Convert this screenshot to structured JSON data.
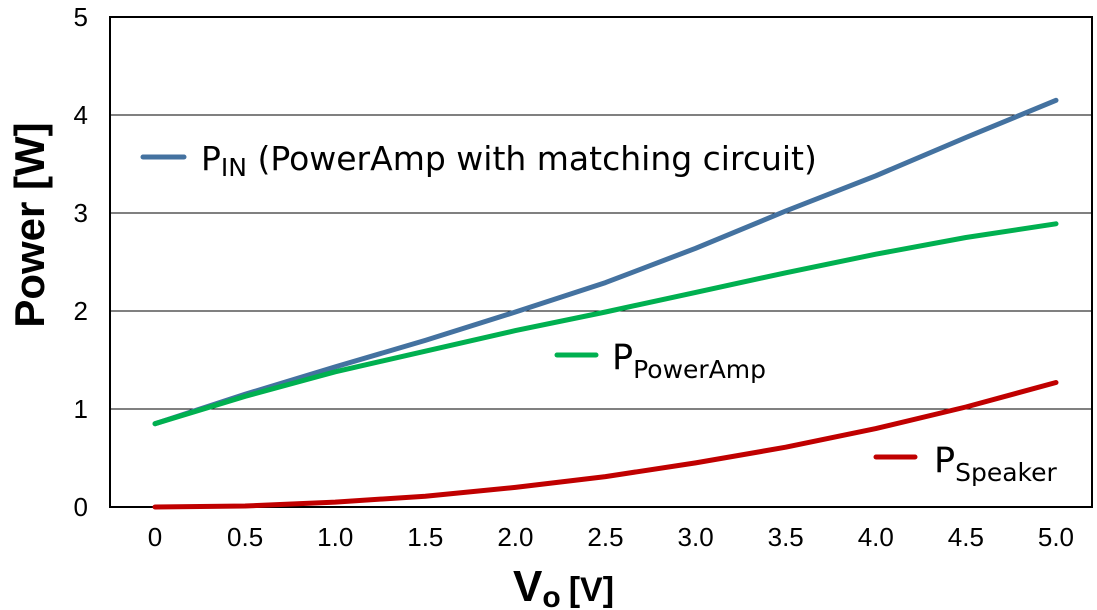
{
  "chart_data": {
    "type": "line",
    "xlabel": {
      "main": "V",
      "sub": "o",
      "unit": "[V]"
    },
    "ylabel": "Power [W]",
    "xlim": [
      -0.25,
      5.2
    ],
    "ylim": [
      0,
      5
    ],
    "x_tick_labels": [
      "0",
      "0.5",
      "1.0",
      "1.5",
      "2.0",
      "2.5",
      "3.0",
      "3.5",
      "4.0",
      "4.5",
      "5.0"
    ],
    "y_tick_labels": [
      "0",
      "1",
      "2",
      "3",
      "4",
      "5"
    ],
    "grid": "horizontal",
    "x": [
      0,
      0.5,
      1.0,
      1.5,
      2.0,
      2.5,
      3.0,
      3.5,
      4.0,
      4.5,
      5.0
    ],
    "series": [
      {
        "key": "pin",
        "label_main": "P",
        "label_sub": "IN",
        "label_rest": " (PowerAmp with matching circuit)",
        "color": "#4472a0",
        "values": [
          0.85,
          1.15,
          1.43,
          1.7,
          1.99,
          2.29,
          2.64,
          3.02,
          3.38,
          3.77,
          4.15
        ]
      },
      {
        "key": "ppa",
        "label_main": "P",
        "label_sub": "PowerAmp",
        "label_rest": "",
        "color": "#00b050",
        "values": [
          0.85,
          1.13,
          1.38,
          1.59,
          1.8,
          1.99,
          2.19,
          2.39,
          2.58,
          2.75,
          2.89
        ]
      },
      {
        "key": "psp",
        "label_main": "P",
        "label_sub": "Speaker",
        "label_rest": "",
        "color": "#c00000",
        "values": [
          0.0,
          0.01,
          0.05,
          0.11,
          0.2,
          0.31,
          0.45,
          0.61,
          0.8,
          1.02,
          1.27
        ]
      }
    ]
  }
}
